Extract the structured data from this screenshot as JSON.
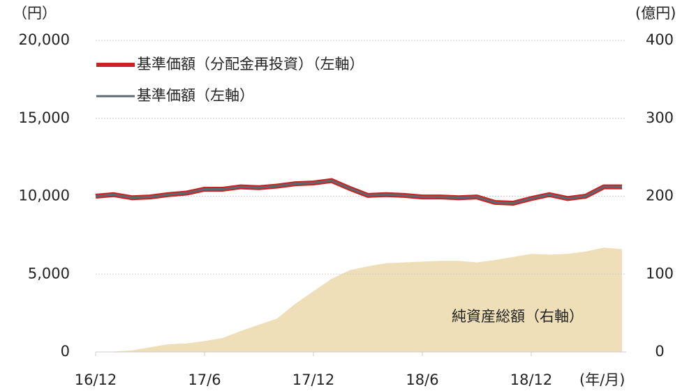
{
  "chart_data": {
    "type": "line",
    "y_unit": "（円）",
    "y2_unit": "(億円)",
    "x_unit": "(年/月)",
    "annotation": "純資産総額（右軸）",
    "categories": [
      "16/12",
      null,
      null,
      null,
      null,
      null,
      "17/6",
      null,
      null,
      null,
      null,
      null,
      "17/12",
      null,
      null,
      null,
      null,
      null,
      "18/6",
      null,
      null,
      null,
      null,
      null,
      "18/12",
      null,
      null,
      null,
      null,
      null
    ],
    "series": [
      {
        "name": "基準価額（分配金再投資）（左軸）",
        "color": "#cc2222",
        "values": [
          10000,
          10100,
          9900,
          9950,
          10100,
          10200,
          10450,
          10450,
          10600,
          10550,
          10650,
          10800,
          10850,
          11000,
          10500,
          10050,
          10100,
          10050,
          9950,
          9950,
          9900,
          9950,
          9600,
          9550,
          9850,
          10100,
          9850,
          10000,
          10600,
          10600
        ]
      },
      {
        "name": "基準価額（左軸）",
        "color": "#5a6a70",
        "values": [
          10000,
          10100,
          9900,
          9950,
          10100,
          10200,
          10450,
          10450,
          10600,
          10550,
          10650,
          10800,
          10850,
          11000,
          10500,
          10050,
          10100,
          10050,
          9950,
          9950,
          9900,
          9950,
          9600,
          9550,
          9850,
          10100,
          9850,
          10000,
          10600,
          10600
        ]
      },
      {
        "name": "純資産総額（右軸）",
        "color": "#efdfb8",
        "axis": "y2",
        "values": [
          0,
          0.5,
          2,
          6,
          10,
          11,
          14,
          18,
          27,
          35,
          43,
          62,
          78,
          94,
          105,
          110,
          114,
          115,
          116,
          117,
          117,
          115,
          118,
          122,
          126,
          125,
          126,
          129,
          134,
          132
        ]
      }
    ],
    "ylim": [
      0,
      20000
    ],
    "yticks": [
      {
        "value": 0,
        "label": "0"
      },
      {
        "value": 5000,
        "label": "5,000"
      },
      {
        "value": 10000,
        "label": "10,000"
      },
      {
        "value": 15000,
        "label": "15,000"
      },
      {
        "value": 20000,
        "label": "20,000"
      }
    ],
    "y2lim": [
      0,
      400
    ],
    "y2ticks": [
      0,
      100,
      200,
      300,
      400
    ],
    "grid": true
  }
}
